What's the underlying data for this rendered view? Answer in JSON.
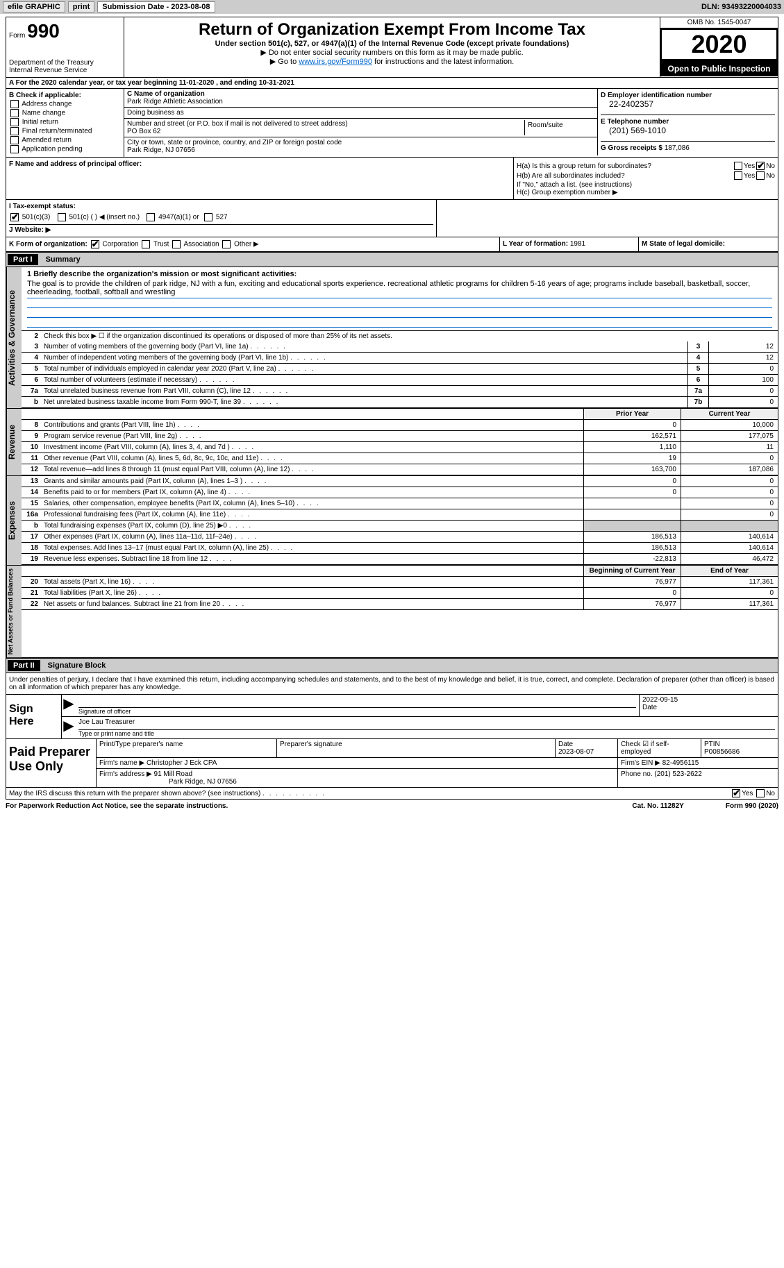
{
  "toolbar": {
    "efile": "efile GRAPHIC",
    "print": "print",
    "sub_date_label": "Submission Date - 2023-08-08",
    "dln": "DLN: 93493220004033"
  },
  "header": {
    "form_prefix": "Form",
    "form_no": "990",
    "dept": "Department of the Treasury\nInternal Revenue Service",
    "title": "Return of Organization Exempt From Income Tax",
    "subtitle": "Under section 501(c), 527, or 4947(a)(1) of the Internal Revenue Code (except private foundations)",
    "instr1": "▶ Do not enter social security numbers on this form as it may be made public.",
    "instr2_pre": "▶ Go to ",
    "instr2_link": "www.irs.gov/Form990",
    "instr2_post": " for instructions and the latest information.",
    "omb": "OMB No. 1545-0047",
    "year": "2020",
    "open_pub": "Open to Public Inspection"
  },
  "rowA": "A For the 2020 calendar year, or tax year beginning 11-01-2020    , and ending 10-31-2021",
  "colB": {
    "title": "B Check if applicable:",
    "opts": [
      "Address change",
      "Name change",
      "Initial return",
      "Final return/terminated",
      "Amended return",
      "Application pending"
    ]
  },
  "colC": {
    "name_lbl": "C Name of organization",
    "name": "Park Ridge Athletic Association",
    "dba_lbl": "Doing business as",
    "dba": "",
    "addr_lbl": "Number and street (or P.O. box if mail is not delivered to street address)",
    "room_lbl": "Room/suite",
    "addr": "PO Box 62",
    "city_lbl": "City or town, state or province, country, and ZIP or foreign postal code",
    "city": "Park Ridge, NJ  07656"
  },
  "colD": {
    "ein_lbl": "D Employer identification number",
    "ein": "22-2402357",
    "phone_lbl": "E Telephone number",
    "phone": "(201) 569-1010",
    "gross_lbl": "G Gross receipts $",
    "gross": "187,086"
  },
  "rowF": {
    "f_lbl": "F  Name and address of principal officer:",
    "ha_lbl": "H(a)  Is this a group return for subordinates?",
    "ha_yes": "Yes",
    "ha_no": "No",
    "hb_lbl": "H(b)  Are all subordinates included?",
    "hb_note": "If \"No,\" attach a list. (see instructions)",
    "hc_lbl": "H(c)  Group exemption number ▶"
  },
  "rowI": {
    "i_lbl": "I  Tax-exempt status:",
    "i_501c3": "501(c)(3)",
    "i_501c": "501(c) (  ) ◀ (insert no.)",
    "i_4947": "4947(a)(1) or",
    "i_527": "527",
    "j_lbl": "J  Website: ▶"
  },
  "rowK": {
    "k_lbl": "K Form of organization:",
    "k_corp": "Corporation",
    "k_trust": "Trust",
    "k_assoc": "Association",
    "k_other": "Other ▶",
    "l_lbl": "L Year of formation:",
    "l_val": "1981",
    "m_lbl": "M State of legal domicile:"
  },
  "partI": {
    "hdr": "Part I",
    "title": "Summary",
    "side_gov": "Activities & Governance",
    "side_rev": "Revenue",
    "side_exp": "Expenses",
    "side_net": "Net Assets or Fund Balances",
    "q1_lbl": "1  Briefly describe the organization's mission or most significant activities:",
    "q1_txt": "The goal is to provide the children of park ridge, NJ with a fun, exciting and educational sports experience. recreational athletic programs for children 5-16 years of age; programs include baseball, basketball, soccer, cheerleading, football, softball and wrestling",
    "q2": "Check this box ▶ ☐  if the organization discontinued its operations or disposed of more than 25% of its net assets.",
    "rows_gov": [
      {
        "n": "3",
        "d": "Number of voting members of the governing body (Part VI, line 1a)",
        "box": "3",
        "v": "12"
      },
      {
        "n": "4",
        "d": "Number of independent voting members of the governing body (Part VI, line 1b)",
        "box": "4",
        "v": "12"
      },
      {
        "n": "5",
        "d": "Total number of individuals employed in calendar year 2020 (Part V, line 2a)",
        "box": "5",
        "v": "0"
      },
      {
        "n": "6",
        "d": "Total number of volunteers (estimate if necessary)",
        "box": "6",
        "v": "100"
      },
      {
        "n": "7a",
        "d": "Total unrelated business revenue from Part VIII, column (C), line 12",
        "box": "7a",
        "v": "0"
      },
      {
        "n": "b",
        "d": "Net unrelated business taxable income from Form 990-T, line 39",
        "box": "7b",
        "v": "0"
      }
    ],
    "col_prior": "Prior Year",
    "col_curr": "Current Year",
    "rows_rev": [
      {
        "n": "8",
        "d": "Contributions and grants (Part VIII, line 1h)",
        "v1": "0",
        "v2": "10,000"
      },
      {
        "n": "9",
        "d": "Program service revenue (Part VIII, line 2g)",
        "v1": "162,571",
        "v2": "177,075"
      },
      {
        "n": "10",
        "d": "Investment income (Part VIII, column (A), lines 3, 4, and 7d )",
        "v1": "1,110",
        "v2": "11"
      },
      {
        "n": "11",
        "d": "Other revenue (Part VIII, column (A), lines 5, 6d, 8c, 9c, 10c, and 11e)",
        "v1": "19",
        "v2": "0"
      },
      {
        "n": "12",
        "d": "Total revenue—add lines 8 through 11 (must equal Part VIII, column (A), line 12)",
        "v1": "163,700",
        "v2": "187,086"
      }
    ],
    "rows_exp": [
      {
        "n": "13",
        "d": "Grants and similar amounts paid (Part IX, column (A), lines 1–3 )",
        "v1": "0",
        "v2": "0"
      },
      {
        "n": "14",
        "d": "Benefits paid to or for members (Part IX, column (A), line 4)",
        "v1": "0",
        "v2": "0"
      },
      {
        "n": "15",
        "d": "Salaries, other compensation, employee benefits (Part IX, column (A), lines 5–10)",
        "v1": "",
        "v2": "0"
      },
      {
        "n": "16a",
        "d": "Professional fundraising fees (Part IX, column (A), line 11e)",
        "v1": "",
        "v2": "0"
      },
      {
        "n": "b",
        "d": "Total fundraising expenses (Part IX, column (D), line 25) ▶0",
        "v1": "shade",
        "v2": "shade"
      },
      {
        "n": "17",
        "d": "Other expenses (Part IX, column (A), lines 11a–11d, 11f–24e)",
        "v1": "186,513",
        "v2": "140,614"
      },
      {
        "n": "18",
        "d": "Total expenses. Add lines 13–17 (must equal Part IX, column (A), line 25)",
        "v1": "186,513",
        "v2": "140,614"
      },
      {
        "n": "19",
        "d": "Revenue less expenses. Subtract line 18 from line 12",
        "v1": "-22,813",
        "v2": "46,472"
      }
    ],
    "col_beg": "Beginning of Current Year",
    "col_end": "End of Year",
    "rows_net": [
      {
        "n": "20",
        "d": "Total assets (Part X, line 16)",
        "v1": "76,977",
        "v2": "117,361"
      },
      {
        "n": "21",
        "d": "Total liabilities (Part X, line 26)",
        "v1": "0",
        "v2": "0"
      },
      {
        "n": "22",
        "d": "Net assets or fund balances. Subtract line 21 from line 20",
        "v1": "76,977",
        "v2": "117,361"
      }
    ]
  },
  "partII": {
    "hdr": "Part II",
    "title": "Signature Block",
    "intro": "Under penalties of perjury, I declare that I have examined this return, including accompanying schedules and statements, and to the best of my knowledge and belief, it is true, correct, and complete. Declaration of preparer (other than officer) is based on all information of which preparer has any knowledge.",
    "sign_here": "Sign Here",
    "sig_of_officer": "Signature of officer",
    "sig_date_lbl": "Date",
    "sig_date": "2022-09-15",
    "officer_name": "Joe Lau  Treasurer",
    "type_name_lbl": "Type or print name and title",
    "paid_prep": "Paid Preparer Use Only",
    "prep_name_lbl": "Print/Type preparer's name",
    "prep_sig_lbl": "Preparer's signature",
    "prep_date_lbl": "Date",
    "prep_date": "2023-08-07",
    "prep_self_lbl": "Check ☑ if self-employed",
    "ptin_lbl": "PTIN",
    "ptin": "P00856686",
    "firm_name_lbl": "Firm's name    ▶",
    "firm_name": "Christopher J Eck CPA",
    "firm_ein_lbl": "Firm's EIN ▶",
    "firm_ein": "82-4956115",
    "firm_addr_lbl": "Firm's address ▶",
    "firm_addr1": "91 Mill Road",
    "firm_addr2": "Park Ridge, NJ  07656",
    "firm_phone_lbl": "Phone no.",
    "firm_phone": "(201) 523-2622",
    "discuss": "May the IRS discuss this return with the preparer shown above? (see instructions)",
    "discuss_yes": "Yes",
    "discuss_no": "No"
  },
  "footer": {
    "paperwork": "For Paperwork Reduction Act Notice, see the separate instructions.",
    "cat": "Cat. No. 11282Y",
    "form": "Form 990 (2020)"
  }
}
